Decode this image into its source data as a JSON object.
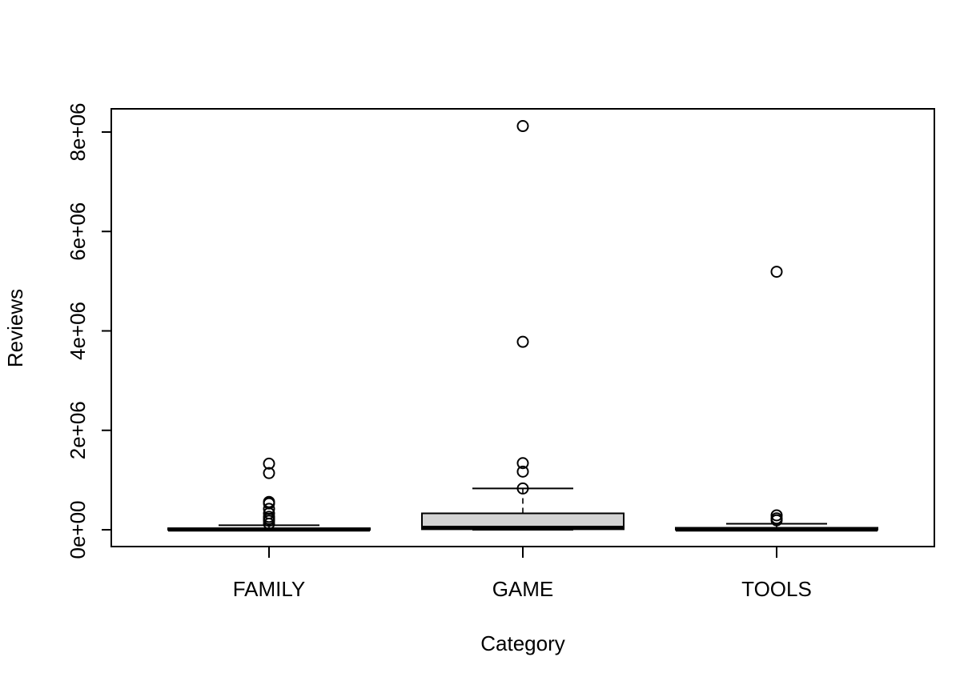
{
  "chart_data": {
    "type": "boxplot",
    "title": "",
    "xlabel": "Category",
    "ylabel": "Reviews",
    "ylim": [
      -330000,
      8460000
    ],
    "yticks": [
      {
        "value": 0,
        "label": "0e+00"
      },
      {
        "value": 2000000,
        "label": "2e+06"
      },
      {
        "value": 4000000,
        "label": "4e+06"
      },
      {
        "value": 6000000,
        "label": "6e+06"
      },
      {
        "value": 8000000,
        "label": "8e+06"
      }
    ],
    "categories": [
      "FAMILY",
      "GAME",
      "TOOLS"
    ],
    "boxes": [
      {
        "category": "FAMILY",
        "min": 0,
        "q1": 0,
        "median": 5000,
        "q3": 30000,
        "max": 90000,
        "outliers": [
          120000,
          180000,
          220000,
          260000,
          330000,
          420000,
          530000,
          560000,
          1140000,
          1330000
        ]
      },
      {
        "category": "GAME",
        "min": 0,
        "q1": 10000,
        "median": 40000,
        "q3": 330000,
        "max": 830000,
        "outliers": [
          830000,
          1170000,
          1340000,
          3780000,
          8120000
        ]
      },
      {
        "category": "TOOLS",
        "min": 0,
        "q1": 0,
        "median": 5000,
        "q3": 40000,
        "max": 120000,
        "outliers": [
          190000,
          230000,
          290000,
          5190000
        ]
      }
    ],
    "grid": false,
    "colors": {
      "box_fill": "#d3d3d3",
      "stroke": "#000000"
    }
  }
}
